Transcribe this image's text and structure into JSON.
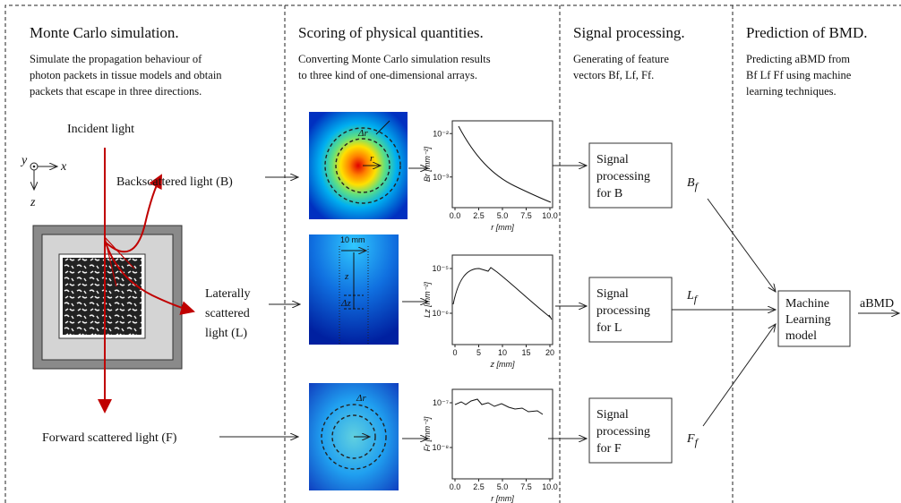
{
  "sections": [
    {
      "title": "Monte Carlo simulation.",
      "desc": [
        "Simulate the propagation behaviour of",
        "photon packets in tissue models and obtain",
        "packets that escape in three directions."
      ]
    },
    {
      "title": "Scoring of physical quantities.",
      "desc": [
        "Converting Monte Carlo simulation results",
        "to three kind of one-dimensional arrays."
      ]
    },
    {
      "title": "Signal processing.",
      "desc": [
        "Generating of feature",
        "vectors Bf, Lf, Ff."
      ]
    },
    {
      "title": "Prediction of BMD.",
      "desc": [
        "Predicting aBMD from",
        "Bf Lf Ff using machine",
        "learning techniques."
      ]
    }
  ],
  "simulation": {
    "incident": "Incident light",
    "axes": {
      "y": "y",
      "x": "x",
      "z": "z"
    },
    "back": "Backscattered light (B)",
    "lateral": [
      "Laterally",
      "scattered",
      "light (L)"
    ],
    "forward": "Forward scattered light (F)"
  },
  "scoring": {
    "back_image": {
      "dr": "Δr",
      "r": "r"
    },
    "lateral_image": {
      "width": "10 mm",
      "z": "z",
      "dz": "Δz"
    },
    "forward_image": {
      "dr": "Δr"
    },
    "plots": [
      {
        "ylabel": "Br [mm⁻²]",
        "xlabel": "r [mm]",
        "xticks": [
          "0.0",
          "2.5",
          "5.0",
          "7.5",
          "10.0"
        ],
        "yticks": [
          "10⁻²",
          "10⁻³"
        ]
      },
      {
        "ylabel": "Lz [mm⁻²]",
        "xlabel": "z [mm]",
        "xticks": [
          "0",
          "5",
          "10",
          "15",
          "20"
        ],
        "yticks": [
          "10⁻⁵",
          "10⁻⁶"
        ]
      },
      {
        "ylabel": "Fr [mm⁻²]",
        "xlabel": "r [mm]",
        "xticks": [
          "0.0",
          "2.5",
          "5.0",
          "7.5",
          "10.0"
        ],
        "yticks": [
          "10⁻⁷",
          "10⁻⁸"
        ]
      }
    ]
  },
  "processing": {
    "boxes": [
      [
        "Signal",
        "processing",
        "for B"
      ],
      [
        "Signal",
        "processing",
        "for L"
      ],
      [
        "Signal",
        "processing",
        "for F"
      ]
    ],
    "outputs": [
      {
        "base": "B",
        "sub": "f"
      },
      {
        "base": "L",
        "sub": "f"
      },
      {
        "base": "F",
        "sub": "f"
      }
    ]
  },
  "prediction": {
    "box": [
      "Machine",
      "Learning",
      "model"
    ],
    "output": "aBMD"
  }
}
